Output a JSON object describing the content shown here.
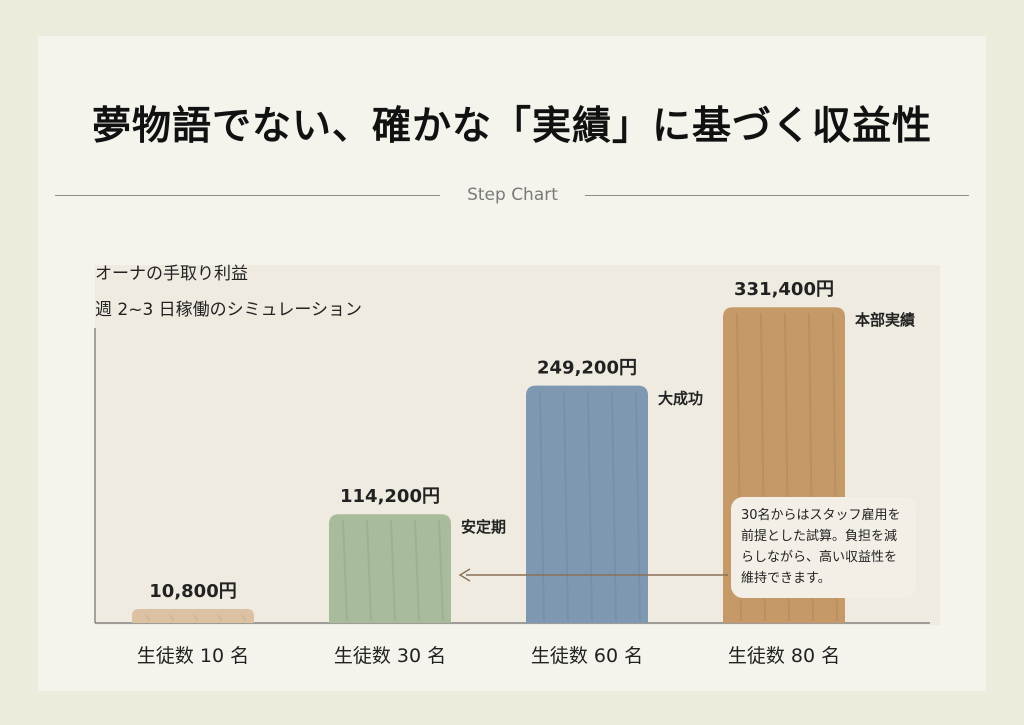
{
  "page": {
    "title": "夢物語でない、確かな「実績」に基づく収益性",
    "section_label": "Step Chart"
  },
  "chart_data": {
    "type": "bar",
    "title": "オーナの手取り利益",
    "subtitle": "週 2~3 日稼働のシミュレーション",
    "categories": [
      "生徒数 10 名",
      "生徒数 30 名",
      "生徒数 60 名",
      "生徒数 80 名"
    ],
    "values": [
      10800,
      114200,
      249200,
      331400
    ],
    "value_labels": [
      "10,800円",
      "114,200円",
      "249,200円",
      "331,400円"
    ],
    "annotations": [
      "",
      "安定期",
      "大成功",
      "本部実績"
    ],
    "bar_colors": [
      "#dcc1a3",
      "#a8bb9b",
      "#7f98b2",
      "#c59a68"
    ],
    "ylim": [
      0,
      360000
    ],
    "xlabel": "",
    "ylabel": "",
    "note": "30名からはスタッフ雇用を前提とした試算。負担を減らしながら、高い収益性を維持できます。"
  }
}
